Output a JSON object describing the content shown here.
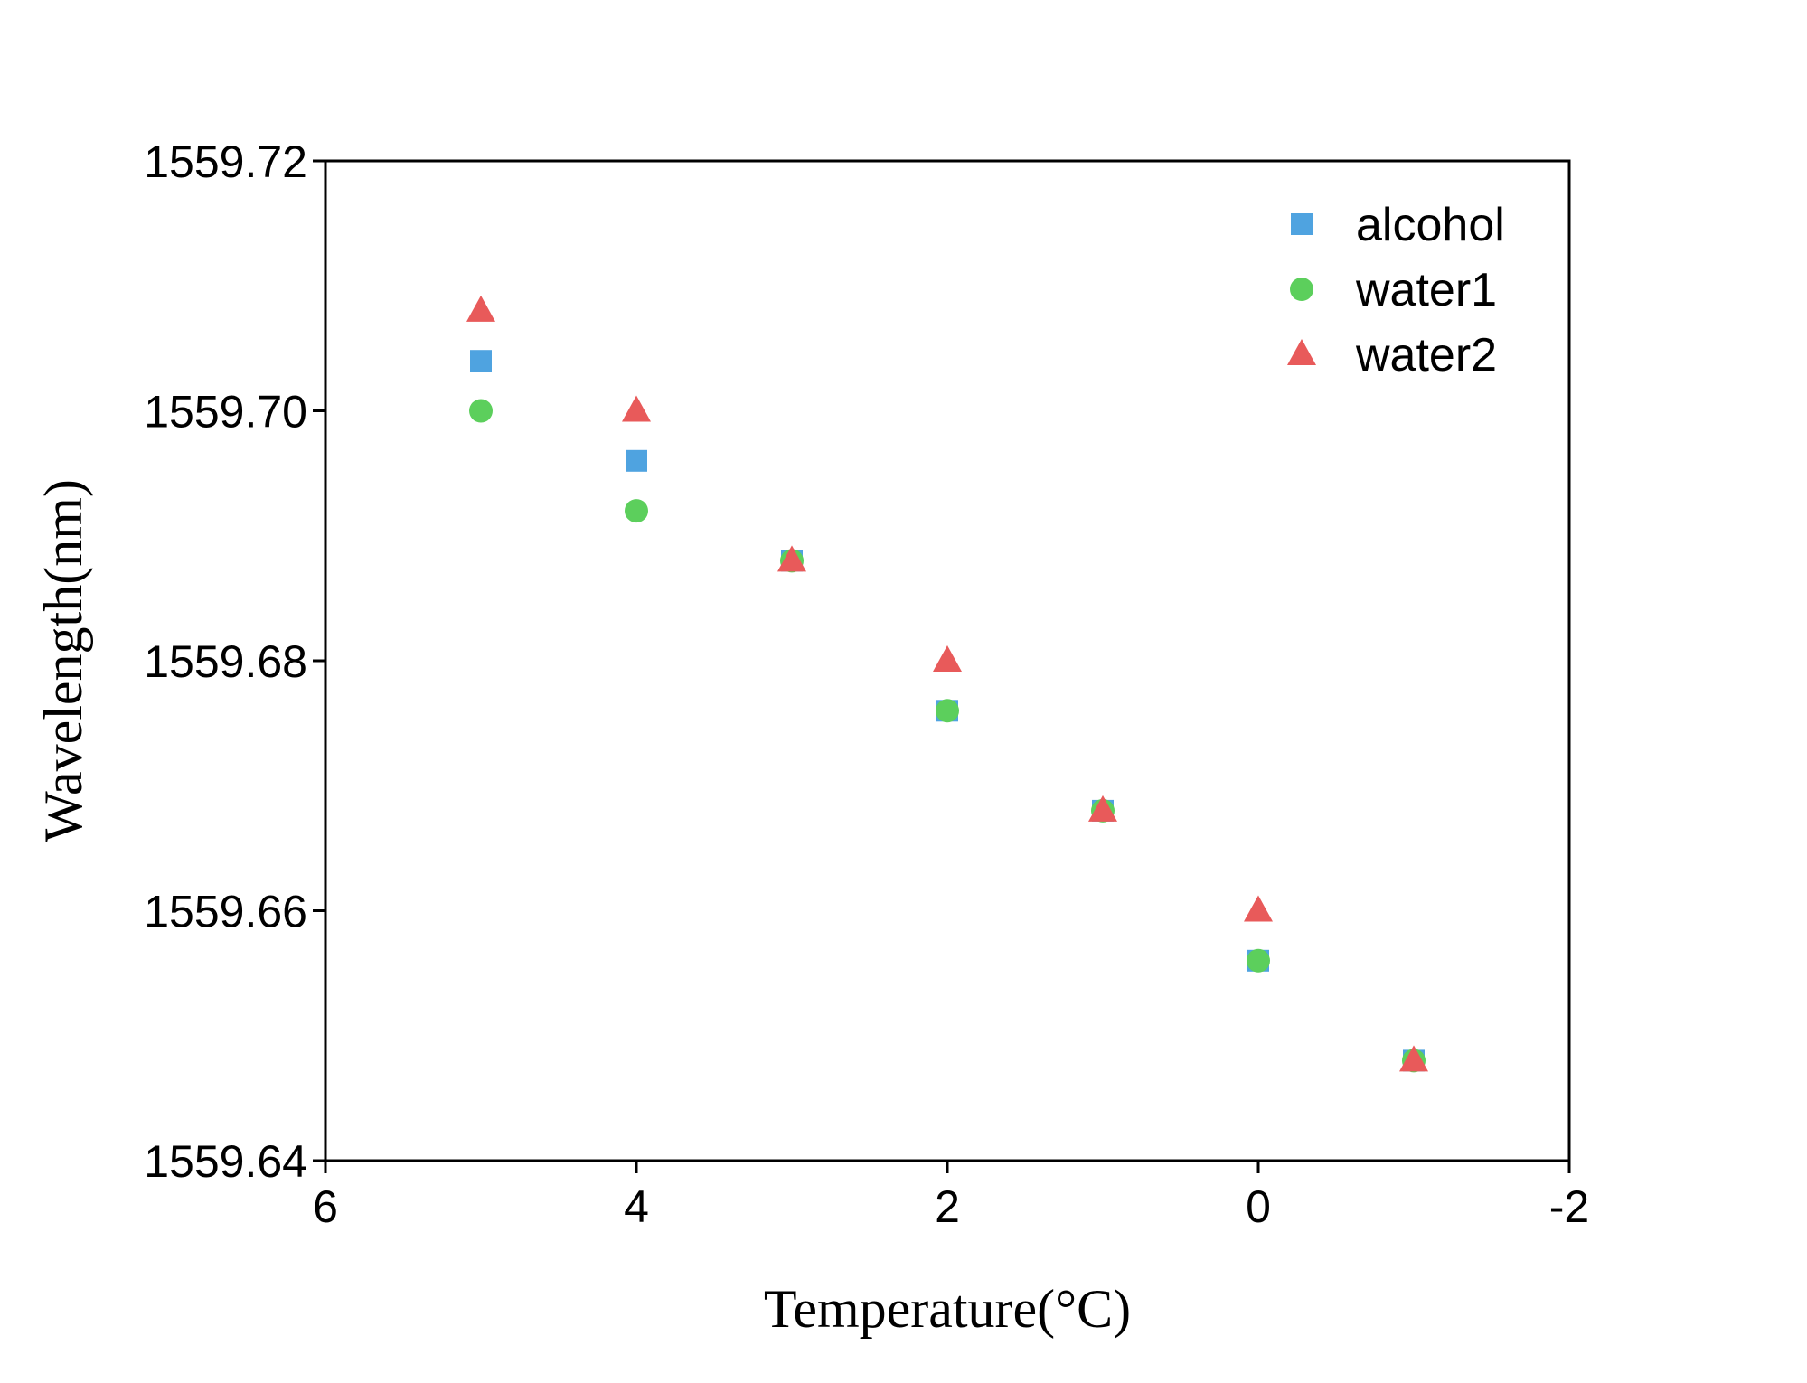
{
  "chart_data": {
    "type": "scatter",
    "title": "",
    "xlabel": "Temperature(°C)",
    "ylabel": "Wavelength(nm)",
    "xlim": [
      6,
      -2
    ],
    "ylim": [
      1559.64,
      1559.72
    ],
    "xticks": [
      6,
      4,
      2,
      0,
      -2
    ],
    "xtick_labels": [
      "6",
      "4",
      "2",
      "0",
      "-2"
    ],
    "yticks": [
      1559.64,
      1559.66,
      1559.68,
      1559.7,
      1559.72
    ],
    "ytick_labels": [
      "1559.64",
      "1559.66",
      "1559.68",
      "1559.70",
      "1559.72"
    ],
    "grid": false,
    "legend_position": "top-right",
    "series": [
      {
        "name": "alcohol",
        "marker": "square",
        "color": "#4fa3e0",
        "x": [
          5,
          4,
          3,
          2,
          1,
          0,
          -1
        ],
        "y": [
          1559.704,
          1559.696,
          1559.688,
          1559.676,
          1559.668,
          1559.656,
          1559.648
        ]
      },
      {
        "name": "water1",
        "marker": "circle",
        "color": "#5ccf5c",
        "x": [
          5,
          4,
          3,
          2,
          1,
          0,
          -1
        ],
        "y": [
          1559.7,
          1559.692,
          1559.688,
          1559.676,
          1559.668,
          1559.656,
          1559.648
        ]
      },
      {
        "name": "water2",
        "marker": "triangle",
        "color": "#e85a5a",
        "x": [
          5,
          4,
          3,
          2,
          1,
          0,
          -1
        ],
        "y": [
          1559.708,
          1559.7,
          1559.688,
          1559.68,
          1559.668,
          1559.66,
          1559.648
        ]
      }
    ]
  }
}
